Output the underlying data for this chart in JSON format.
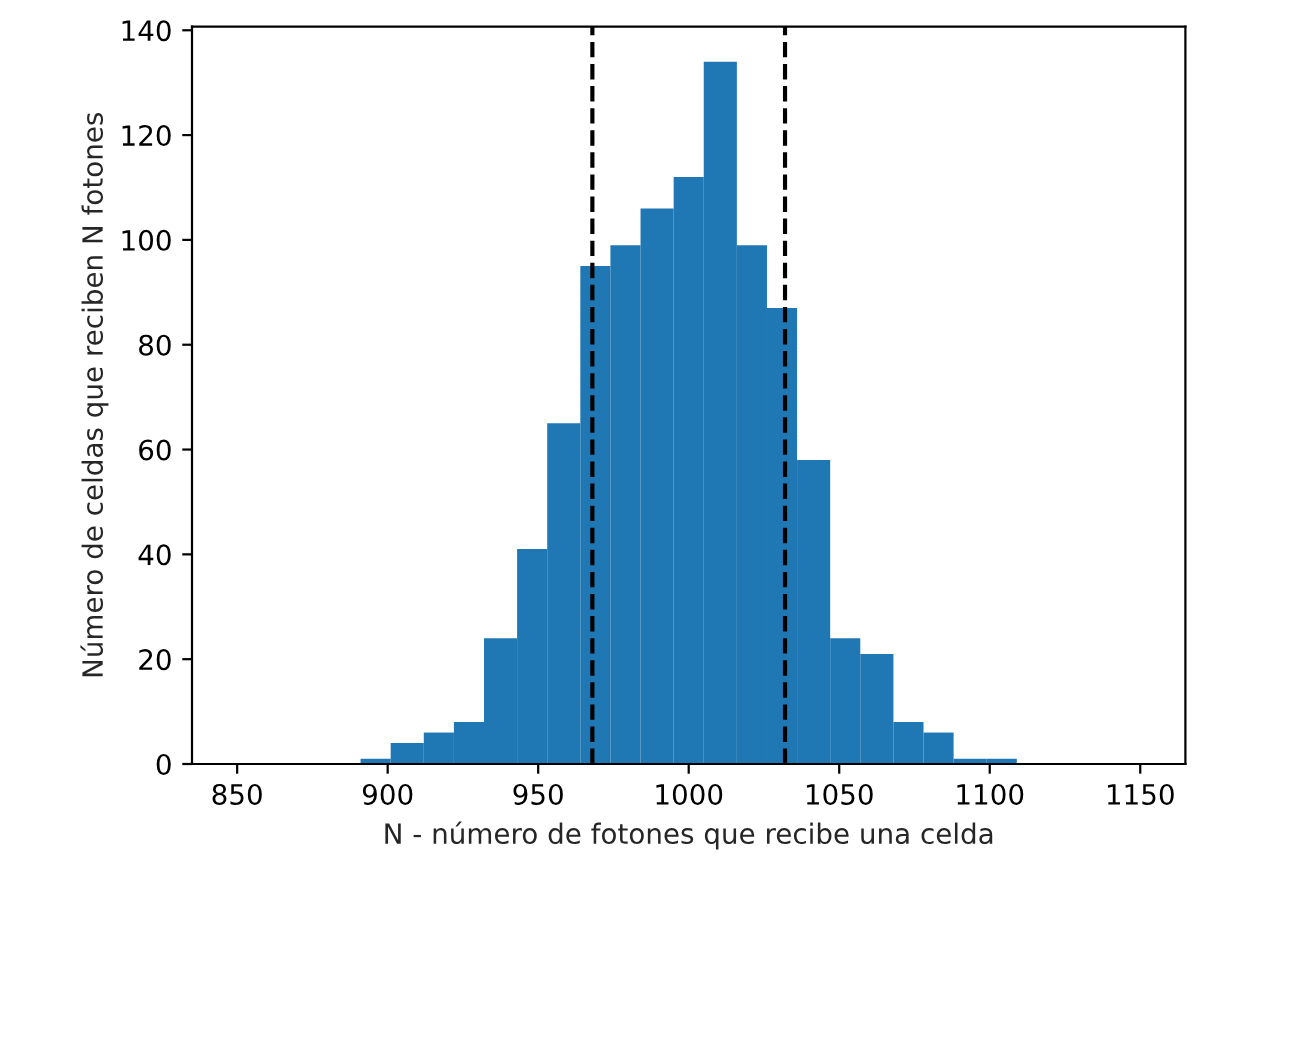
{
  "chart_data": {
    "type": "histogram",
    "xlabel": "N - número de fotones que recibe una celda",
    "ylabel": "Número de celdas que reciben N fotones",
    "bins": [
      891,
      901,
      912,
      922,
      932,
      943,
      953,
      964,
      974,
      984,
      995,
      1005,
      1016,
      1026,
      1036,
      1047,
      1057,
      1068,
      1078,
      1088,
      1099,
      1109
    ],
    "values": [
      1,
      4,
      6,
      8,
      24,
      41,
      65,
      95,
      99,
      106,
      112,
      134,
      99,
      87,
      58,
      24,
      21,
      8,
      6,
      1,
      1
    ],
    "color": "#1f77b4",
    "xlim": [
      835,
      1165
    ],
    "xticks": [
      850,
      900,
      950,
      1000,
      1050,
      1100,
      1150
    ],
    "ylim": [
      0,
      140.7
    ],
    "yticks": [
      0,
      20,
      40,
      60,
      80,
      100,
      120,
      140
    ],
    "ref_lines": [
      {
        "axis": "x",
        "value": 968,
        "color": "#000000",
        "line_style": "dashed"
      },
      {
        "axis": "x",
        "value": 1032,
        "color": "#000000",
        "line_style": "dashed"
      }
    ]
  }
}
